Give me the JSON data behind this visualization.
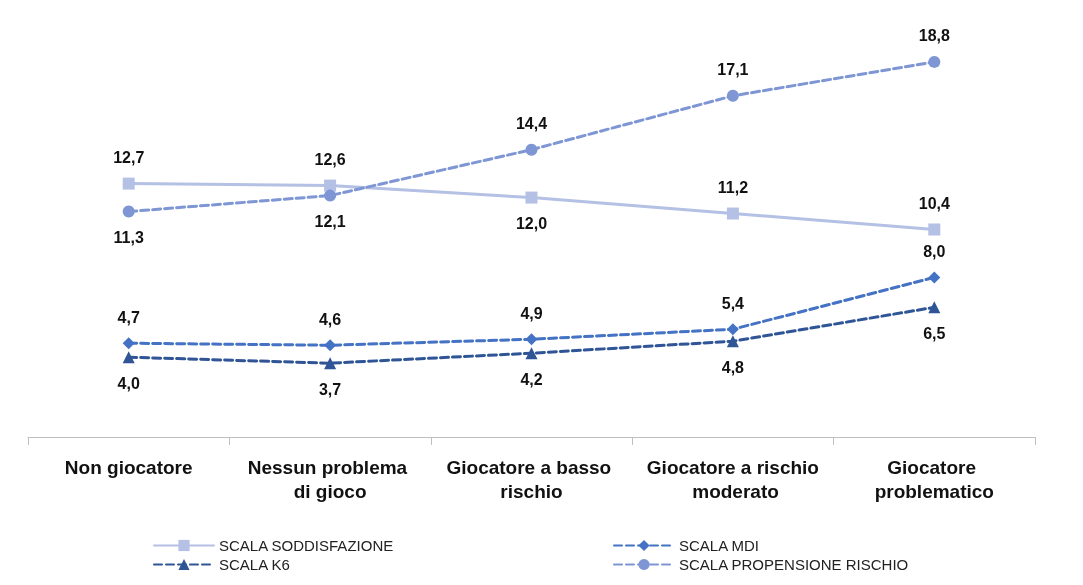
{
  "chart_data": {
    "type": "line",
    "categories": [
      "Non giocatore",
      "Nessun problema di gioco",
      "Giocatore a basso rischio",
      "Giocatore a rischio moderato",
      "Giocatore problematico"
    ],
    "series": [
      {
        "name": "SCALA SODDISFAZIONE",
        "color": "#b4c0e4",
        "values": [
          12.7,
          12.6,
          12.0,
          11.2,
          10.4
        ],
        "value_labels": [
          "12,7",
          "12,6",
          "12,0",
          "11,2",
          "10,4"
        ],
        "marker": "square",
        "line_style": "solid"
      },
      {
        "name": "SCALA MDI",
        "color": "#4472c4",
        "values": [
          4.7,
          4.6,
          4.9,
          5.4,
          8.0
        ],
        "value_labels": [
          "4,7",
          "4,6",
          "4,9",
          "5,4",
          "8,0"
        ],
        "marker": "diamond",
        "line_style": "dashed"
      },
      {
        "name": "SCALA K6",
        "color": "#2f5597",
        "values": [
          4.0,
          3.7,
          4.2,
          4.8,
          6.5
        ],
        "value_labels": [
          "4,0",
          "3,7",
          "4,2",
          "4,8",
          "6,5"
        ],
        "marker": "triangle",
        "line_style": "dashed"
      },
      {
        "name": "SCALA PROPENSIONE RISCHIO",
        "color": "#7f96d4",
        "values": [
          11.3,
          12.1,
          14.4,
          17.1,
          18.8
        ],
        "value_labels": [
          "11,3",
          "12,1",
          "14,4",
          "17,1",
          "18,8"
        ],
        "marker": "circle",
        "line_style": "dashed"
      }
    ],
    "grid": false,
    "legend": "bottom",
    "tick_labels": "x"
  }
}
